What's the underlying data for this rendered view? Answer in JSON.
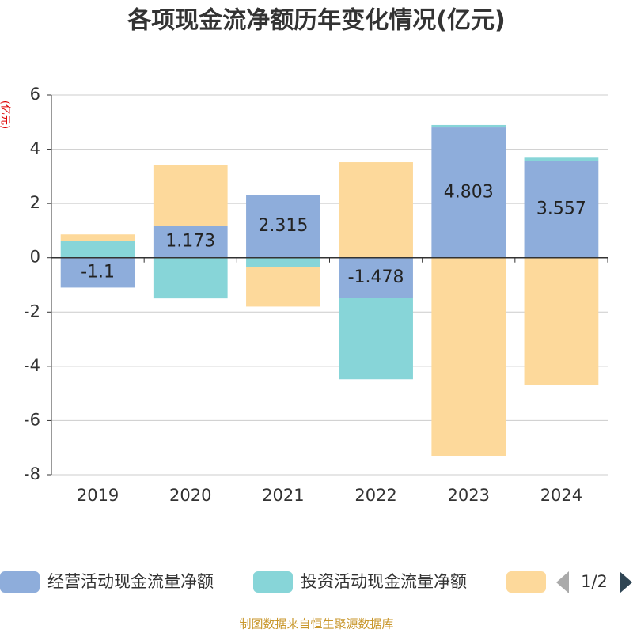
{
  "chart_data": {
    "type": "bar",
    "stacked": true,
    "title": "各项现金流净额历年变化情况(亿元)",
    "y_label": "(亿元)",
    "categories": [
      "2019",
      "2020",
      "2021",
      "2022",
      "2023",
      "2024"
    ],
    "series": [
      {
        "name": "经营活动现金流量净额",
        "color": "#8eaddb",
        "values": [
          -1.1,
          1.173,
          2.315,
          -1.478,
          4.803,
          3.557
        ],
        "show_labels": true
      },
      {
        "name": "投资活动现金流量净额",
        "color": "#87d5d8",
        "values": [
          0.63,
          -1.5,
          -0.33,
          -3.0,
          0.09,
          0.13
        ]
      },
      {
        "color": "#fdd99b",
        "values": [
          0.23,
          2.26,
          -1.47,
          3.52,
          -7.3,
          -4.68
        ]
      }
    ],
    "ylim": [
      -8,
      6
    ],
    "yticks": [
      -8,
      -6,
      -4,
      -2,
      0,
      2,
      4,
      6
    ],
    "grid": true,
    "legend_page": "1/2",
    "source": "制图数据来自恒生聚源数据库"
  }
}
